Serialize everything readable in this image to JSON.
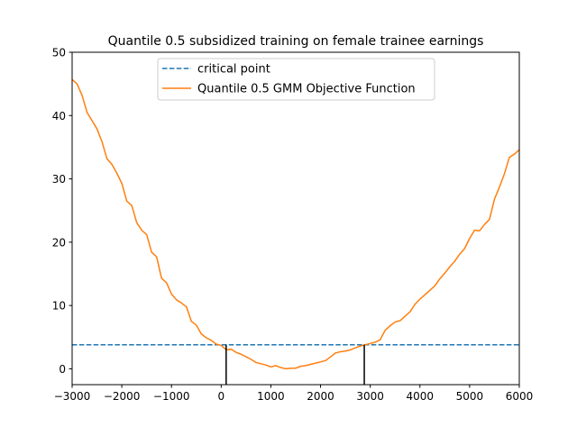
{
  "chart_data": {
    "type": "line",
    "title": "Quantile 0.5 subsidized training on female trainee earnings",
    "xlabel": "",
    "ylabel": "",
    "xlim": [
      -3000,
      6000
    ],
    "ylim": [
      -2.5,
      50
    ],
    "xticks": [
      -3000,
      -2000,
      -1000,
      0,
      1000,
      2000,
      3000,
      4000,
      5000,
      6000
    ],
    "xtick_labels": [
      "−3000",
      "−2000",
      "−1000",
      "0",
      "1000",
      "2000",
      "3000",
      "4000",
      "5000",
      "6000"
    ],
    "yticks": [
      0,
      10,
      20,
      30,
      40,
      50
    ],
    "ytick_labels": [
      "0",
      "10",
      "20",
      "30",
      "40",
      "50"
    ],
    "grid": false,
    "legend_position": "upper-center",
    "series": [
      {
        "name": "critical point",
        "style": "dashed",
        "color": "#1f77b4",
        "x": [
          -3000,
          6000
        ],
        "y": [
          3.8,
          3.8
        ]
      },
      {
        "name": "Quantile 0.5 GMM Objective Function",
        "style": "solid",
        "color": "#ff7f0e",
        "x": [
          -3000,
          -2900,
          -2800,
          -2700,
          -2600,
          -2500,
          -2400,
          -2300,
          -2200,
          -2100,
          -2000,
          -1900,
          -1800,
          -1700,
          -1600,
          -1500,
          -1400,
          -1300,
          -1200,
          -1100,
          -1000,
          -900,
          -800,
          -700,
          -600,
          -500,
          -400,
          -300,
          -200,
          -100,
          0,
          100,
          200,
          300,
          400,
          500,
          600,
          700,
          800,
          900,
          1000,
          1100,
          1200,
          1300,
          1400,
          1500,
          1600,
          1700,
          1800,
          1900,
          2000,
          2100,
          2200,
          2300,
          2400,
          2500,
          2600,
          2700,
          2800,
          2900,
          3000,
          3100,
          3200,
          3300,
          3400,
          3500,
          3600,
          3700,
          3800,
          3900,
          4000,
          4100,
          4200,
          4300,
          4400,
          4500,
          4600,
          4700,
          4800,
          4900,
          5000,
          5100,
          5200,
          5300,
          5400,
          5500,
          5600,
          5700,
          5800,
          5900,
          6000
        ],
        "y": [
          45.7,
          45.0,
          43.2,
          40.5,
          39.2,
          37.9,
          35.9,
          33.2,
          32.3,
          30.9,
          29.3,
          26.5,
          25.8,
          23.1,
          21.9,
          21.2,
          18.4,
          17.7,
          14.3,
          13.6,
          11.8,
          10.9,
          10.4,
          9.8,
          7.5,
          6.9,
          5.5,
          4.9,
          4.5,
          3.9,
          3.7,
          3.0,
          3.1,
          2.6,
          2.3,
          1.9,
          1.5,
          1.0,
          0.8,
          0.6,
          0.3,
          0.5,
          0.2,
          0.0,
          0.1,
          0.1,
          0.4,
          0.5,
          0.7,
          0.9,
          1.1,
          1.3,
          1.9,
          2.5,
          2.7,
          2.8,
          3.0,
          3.3,
          3.6,
          3.8,
          4.0,
          4.2,
          4.6,
          6.1,
          6.8,
          7.4,
          7.6,
          8.3,
          9.0,
          10.2,
          11.0,
          11.7,
          12.4,
          13.1,
          14.2,
          15.1,
          16.1,
          17.0,
          18.1,
          19.0,
          20.6,
          21.9,
          21.8,
          22.8,
          23.6,
          26.8,
          28.7,
          30.8,
          33.4,
          33.9,
          34.6
        ]
      }
    ],
    "vertical_markers": [
      {
        "x": 100,
        "y_from": -2.5,
        "y_to": 3.8,
        "color": "#000000"
      },
      {
        "x": 2880,
        "y_from": -2.5,
        "y_to": 3.8,
        "color": "#000000"
      }
    ]
  }
}
